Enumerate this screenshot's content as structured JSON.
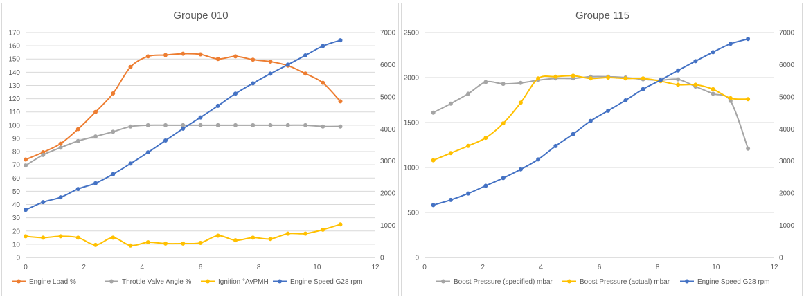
{
  "chart_data": [
    {
      "type": "line",
      "title": "Groupe 010",
      "x_ticks": [
        0,
        2,
        4,
        6,
        8,
        10,
        12
      ],
      "xlim": [
        0,
        12
      ],
      "y_left_ticks": [
        0,
        10,
        20,
        30,
        40,
        50,
        60,
        70,
        80,
        90,
        100,
        110,
        120,
        130,
        140,
        150,
        160,
        170
      ],
      "ylim_left": [
        0,
        170
      ],
      "y_right_ticks": [
        0,
        1000,
        2000,
        3000,
        4000,
        5000,
        6000,
        7000
      ],
      "ylim_right": [
        0,
        7000
      ],
      "series": [
        {
          "name": "Engine Load %",
          "axis": "left",
          "color": "#ED7D31",
          "x": [
            0,
            0.6,
            1.2,
            1.8,
            2.4,
            3.0,
            3.6,
            4.2,
            4.8,
            5.4,
            6.0,
            6.6,
            7.2,
            7.8,
            8.4,
            9.0,
            9.6,
            10.2,
            10.8
          ],
          "y": [
            74,
            79.5,
            86,
            97,
            110,
            124,
            144,
            152,
            153,
            154,
            153.5,
            150,
            152,
            149.5,
            148,
            145,
            139,
            132,
            118
          ]
        },
        {
          "name": "Throttle Valve Angle %",
          "axis": "left",
          "color": "#A5A5A5",
          "x": [
            0,
            0.6,
            1.2,
            1.8,
            2.4,
            3.0,
            3.6,
            4.2,
            4.8,
            5.4,
            6.0,
            6.6,
            7.2,
            7.8,
            8.4,
            9.0,
            9.6,
            10.2,
            10.8
          ],
          "y": [
            69.5,
            77.5,
            83,
            88,
            91.5,
            95,
            99,
            100,
            100,
            100,
            100,
            100,
            100,
            100,
            100,
            100,
            100,
            99,
            99
          ]
        },
        {
          "name": "Ignition  °AvPMH",
          "axis": "left",
          "color": "#FFC000",
          "x": [
            0,
            0.6,
            1.2,
            1.8,
            2.4,
            3.0,
            3.6,
            4.2,
            4.8,
            5.4,
            6.0,
            6.6,
            7.2,
            7.8,
            8.4,
            9.0,
            9.6,
            10.2,
            10.8
          ],
          "y": [
            16,
            15,
            16,
            15,
            9.5,
            15,
            9,
            11.5,
            10.5,
            10.5,
            11,
            16.5,
            13,
            15,
            14,
            18,
            18,
            21,
            25
          ]
        },
        {
          "name": "Engine Speed G28 rpm",
          "axis": "right",
          "color": "#4472C4",
          "x": [
            0,
            0.6,
            1.2,
            1.8,
            2.4,
            3.0,
            3.6,
            4.2,
            4.8,
            5.4,
            6.0,
            6.6,
            7.2,
            7.8,
            8.4,
            9.0,
            9.6,
            10.2,
            10.8
          ],
          "y": [
            1480,
            1720,
            1870,
            2130,
            2310,
            2590,
            2920,
            3270,
            3640,
            4010,
            4360,
            4720,
            5100,
            5420,
            5720,
            6000,
            6290,
            6580,
            6760
          ]
        }
      ]
    },
    {
      "type": "line",
      "title": "Groupe 115",
      "x_ticks": [
        0,
        2,
        4,
        6,
        8,
        10,
        12
      ],
      "xlim": [
        0,
        12
      ],
      "y_left_ticks": [
        0,
        500,
        1000,
        1500,
        2000,
        2500
      ],
      "ylim_left": [
        0,
        2500
      ],
      "y_right_ticks": [
        0,
        1000,
        2000,
        3000,
        4000,
        5000,
        6000,
        7000
      ],
      "ylim_right": [
        0,
        7000
      ],
      "series": [
        {
          "name": "Boost Pressure (specified) mbar",
          "axis": "left",
          "color": "#A5A5A5",
          "x": [
            0.3,
            0.9,
            1.5,
            2.1,
            2.7,
            3.3,
            3.9,
            4.5,
            5.1,
            5.7,
            6.3,
            6.9,
            7.5,
            8.1,
            8.7,
            9.3,
            9.9,
            10.5,
            11.1
          ],
          "y": [
            1610,
            1710,
            1820,
            1950,
            1930,
            1940,
            1970,
            1990,
            1990,
            2010,
            2010,
            2000,
            1980,
            1970,
            1980,
            1900,
            1820,
            1740,
            1210
          ]
        },
        {
          "name": "Boost Pressure (actual) mbar",
          "axis": "left",
          "color": "#FFC000",
          "x": [
            0.3,
            0.9,
            1.5,
            2.1,
            2.7,
            3.3,
            3.9,
            4.5,
            5.1,
            5.7,
            6.3,
            6.9,
            7.5,
            8.1,
            8.7,
            9.3,
            9.9,
            10.5,
            11.1
          ],
          "y": [
            1080,
            1160,
            1240,
            1330,
            1490,
            1720,
            1990,
            2010,
            2020,
            1990,
            2000,
            1990,
            1990,
            1960,
            1920,
            1920,
            1870,
            1770,
            1760
          ]
        },
        {
          "name": "Engine Speed G28 rpm",
          "axis": "right",
          "color": "#4472C4",
          "x": [
            0.3,
            0.9,
            1.5,
            2.1,
            2.7,
            3.3,
            3.9,
            4.5,
            5.1,
            5.7,
            6.3,
            6.9,
            7.5,
            8.1,
            8.7,
            9.3,
            9.9,
            10.5,
            11.1
          ],
          "y": [
            1630,
            1790,
            1990,
            2230,
            2470,
            2740,
            3050,
            3470,
            3840,
            4250,
            4570,
            4890,
            5240,
            5520,
            5820,
            6110,
            6390,
            6650,
            6800
          ]
        }
      ]
    }
  ]
}
